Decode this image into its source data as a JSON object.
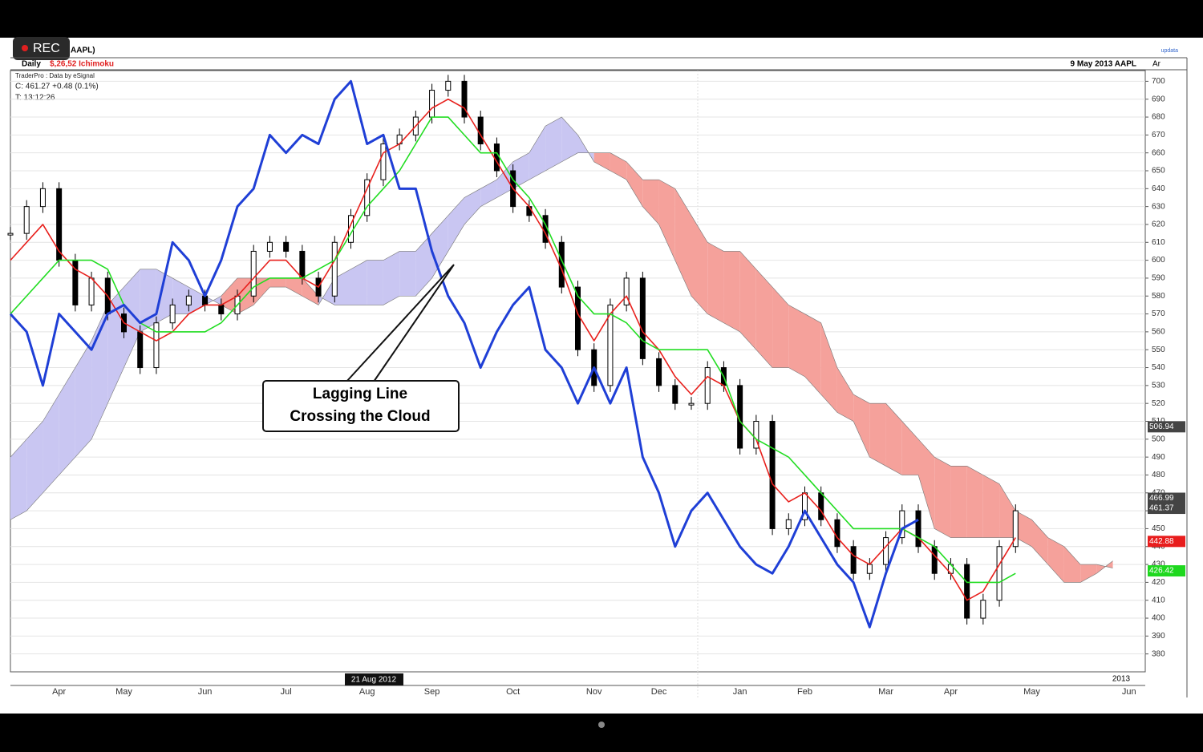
{
  "header": {
    "rec": "REC",
    "symbol": "AAPL)",
    "period": "Daily",
    "study": "$,26,52 Ichimoku",
    "date_symbol": "9 May 2013  AAPL",
    "axis_tag": "Ar",
    "brand": "updata",
    "source": "TraderPro : Data by eSignal",
    "close_line": "C: 461.27  +0.48 (0.1%)",
    "time_line": "T: 13:12:26"
  },
  "annotation": {
    "line1": "Lagging Line",
    "line2": "Crossing the Cloud"
  },
  "chart_data": {
    "type": "ichimoku",
    "categories": [
      null,
      null,
      null,
      "Apr",
      null,
      null,
      null,
      "May",
      null,
      null,
      null,
      null,
      "Jun",
      null,
      null,
      null,
      null,
      "Jul",
      null,
      null,
      null,
      null,
      "Aug",
      null,
      null,
      null,
      "Sep",
      null,
      null,
      null,
      null,
      "Oct",
      null,
      null,
      null,
      null,
      "Nov",
      null,
      null,
      null,
      "Dec",
      null,
      null,
      null,
      null,
      "Jan",
      null,
      null,
      null,
      "Feb",
      null,
      null,
      null,
      null,
      "Mar",
      null,
      null,
      null,
      "Apr",
      null,
      null,
      null,
      null,
      "May",
      null,
      null,
      null,
      null,
      null,
      "Jun",
      null
    ],
    "date_marker": "21 Aug 2012",
    "year_marker": "2013",
    "ylim": [
      370,
      706
    ],
    "yticks": [
      380,
      390,
      400,
      410,
      420,
      430,
      440,
      450,
      460,
      470,
      480,
      490,
      500,
      510,
      520,
      530,
      540,
      550,
      560,
      570,
      580,
      590,
      600,
      610,
      620,
      630,
      640,
      650,
      660,
      670,
      680,
      690,
      700
    ],
    "grid": true,
    "series": [
      {
        "style": "candle",
        "color": "#000000",
        "values": [
          615,
          630,
          640,
          600,
          575,
          590,
          570,
          560,
          540,
          565,
          575,
          580,
          575,
          570,
          580,
          605,
          610,
          605,
          590,
          580,
          610,
          625,
          645,
          665,
          670,
          680,
          695,
          700,
          680,
          665,
          650,
          630,
          625,
          610,
          585,
          550,
          530,
          575,
          590,
          545,
          530,
          520,
          520,
          540,
          530,
          495,
          510,
          450,
          455,
          470,
          455,
          440,
          425,
          430,
          445,
          460,
          440,
          425,
          430,
          400,
          410,
          440,
          460,
          null,
          null,
          null,
          null,
          null,
          null,
          null,
          null
        ]
      },
      {
        "style": "line",
        "color": "#e8201c",
        "values": [
          600,
          610,
          620,
          605,
          595,
          590,
          580,
          565,
          560,
          555,
          560,
          570,
          575,
          575,
          580,
          590,
          600,
          600,
          590,
          585,
          600,
          620,
          640,
          660,
          665,
          675,
          685,
          690,
          685,
          670,
          655,
          640,
          630,
          615,
          595,
          570,
          555,
          570,
          580,
          560,
          550,
          535,
          525,
          535,
          530,
          510,
          500,
          475,
          465,
          470,
          460,
          445,
          435,
          430,
          440,
          450,
          445,
          435,
          425,
          410,
          415,
          430,
          445,
          null,
          null,
          null,
          null,
          null,
          null,
          null,
          null
        ]
      },
      {
        "style": "line",
        "color": "#22dd22",
        "values": [
          570,
          580,
          590,
          600,
          600,
          600,
          595,
          575,
          565,
          560,
          560,
          560,
          560,
          565,
          575,
          585,
          590,
          590,
          590,
          595,
          600,
          615,
          630,
          640,
          650,
          665,
          680,
          680,
          670,
          660,
          660,
          645,
          635,
          620,
          600,
          580,
          570,
          570,
          565,
          555,
          550,
          550,
          550,
          550,
          535,
          510,
          500,
          495,
          490,
          480,
          470,
          460,
          450,
          450,
          450,
          450,
          445,
          440,
          430,
          420,
          420,
          420,
          425,
          null,
          null,
          null,
          null,
          null,
          null,
          null,
          null
        ]
      },
      {
        "style": "line",
        "color": "#1f3fd6",
        "values": [
          570,
          560,
          530,
          570,
          560,
          550,
          570,
          575,
          565,
          570,
          610,
          600,
          580,
          600,
          630,
          640,
          670,
          660,
          670,
          665,
          690,
          700,
          665,
          670,
          640,
          640,
          605,
          580,
          565,
          540,
          560,
          575,
          585,
          550,
          540,
          520,
          540,
          520,
          540,
          490,
          470,
          440,
          460,
          470,
          455,
          440,
          430,
          425,
          440,
          460,
          445,
          430,
          420,
          395,
          425,
          450,
          455,
          null,
          null,
          null,
          null,
          null,
          null,
          null,
          null,
          null,
          null,
          null,
          null,
          null,
          null
        ]
      }
    ],
    "cloud": {
      "bull_color": "#c9c6f2",
      "bear_color": "#f5a19b",
      "span_a": [
        490,
        500,
        510,
        525,
        540,
        555,
        575,
        585,
        595,
        595,
        590,
        585,
        580,
        575,
        570,
        575,
        585,
        585,
        580,
        575,
        590,
        595,
        600,
        600,
        605,
        605,
        615,
        625,
        635,
        640,
        645,
        655,
        660,
        675,
        680,
        670,
        655,
        650,
        645,
        630,
        620,
        600,
        580,
        570,
        565,
        560,
        550,
        540,
        540,
        535,
        525,
        515,
        510,
        490,
        485,
        480,
        480,
        450,
        445,
        445,
        445,
        445,
        445,
        440,
        430,
        420,
        420,
        425,
        432,
        null,
        null
      ],
      "span_b": [
        455,
        460,
        470,
        480,
        490,
        500,
        520,
        540,
        560,
        565,
        570,
        570,
        575,
        580,
        590,
        590,
        590,
        590,
        590,
        580,
        575,
        575,
        575,
        575,
        580,
        580,
        590,
        605,
        620,
        630,
        635,
        640,
        645,
        650,
        655,
        660,
        660,
        660,
        655,
        645,
        645,
        640,
        625,
        610,
        605,
        605,
        595,
        585,
        575,
        570,
        565,
        540,
        525,
        520,
        520,
        510,
        500,
        490,
        485,
        485,
        480,
        475,
        460,
        455,
        445,
        440,
        430,
        430,
        428,
        null,
        null
      ]
    },
    "axis_markers": [
      {
        "value": 506.94,
        "color": "#444444"
      },
      {
        "value": 466.99,
        "color": "#444444"
      },
      {
        "value": 461.37,
        "color": "#444444"
      },
      {
        "value": 442.88,
        "color": "#e81c1c"
      },
      {
        "value": 426.42,
        "color": "#1ed81e"
      }
    ]
  }
}
